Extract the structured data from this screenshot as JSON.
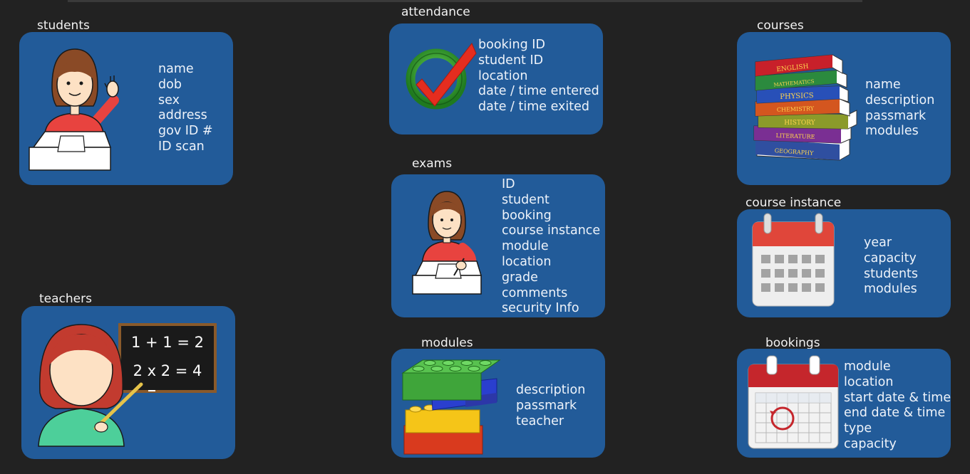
{
  "entities": {
    "students": {
      "title": "students",
      "fields": [
        "name",
        "dob",
        "sex",
        "address",
        "gov ID #",
        "ID scan"
      ]
    },
    "teachers": {
      "title": "teachers",
      "fields": [],
      "board_lines": [
        "1 + 1 = 2",
        "2 x 2 = 4"
      ]
    },
    "attendance": {
      "title": "attendance",
      "fields": [
        "booking ID",
        "student ID",
        "location",
        "date / time entered",
        "date / time exited"
      ]
    },
    "exams": {
      "title": "exams",
      "fields": [
        "ID",
        "student",
        "booking",
        "course instance",
        "module",
        "location",
        "grade",
        "comments",
        "security Info"
      ]
    },
    "modules": {
      "title": "modules",
      "fields": [
        "description",
        "passmark",
        "teacher"
      ]
    },
    "courses": {
      "title": "courses",
      "fields": [
        "name",
        "description",
        "passmark",
        "modules"
      ],
      "book_labels": [
        "ENGLISH",
        "MATHEMATICS",
        "PHYSICS",
        "CHEMISTRY",
        "HISTORY",
        "LITERATURE",
        "GEOGRAPHY"
      ]
    },
    "course_instance": {
      "title": "course instance",
      "fields": [
        "year",
        "capacity",
        "students",
        "modules"
      ]
    },
    "bookings": {
      "title": "bookings",
      "fields": [
        "module",
        "location",
        "start date & time",
        "end date & time",
        "type",
        "capacity"
      ]
    }
  },
  "colors": {
    "background": "#222222",
    "card": "#225b99",
    "text": "#eef3fa"
  },
  "icons": {
    "students": "student-raising-hand-icon",
    "teachers": "teacher-chalkboard-icon",
    "attendance": "check-mark-icon",
    "exams": "student-writing-exam-icon",
    "modules": "building-blocks-icon",
    "courses": "book-stack-icon",
    "course_instance": "calendar-icon",
    "bookings": "calendar-booking-icon"
  }
}
